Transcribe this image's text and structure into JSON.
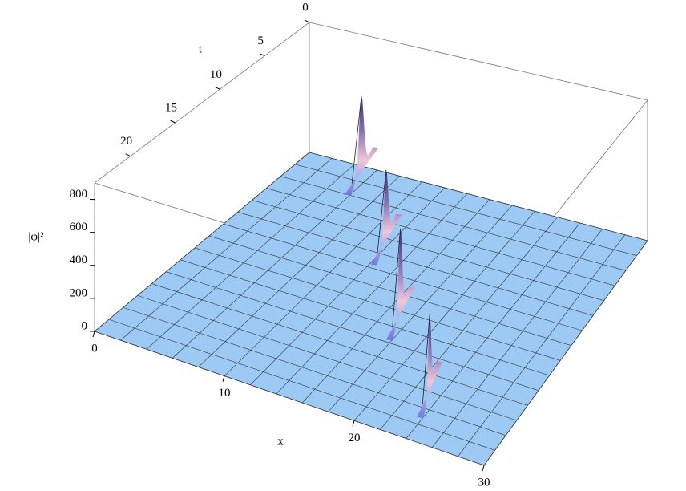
{
  "chart_data": {
    "type": "surface3d",
    "xlabel": "x",
    "ylabel": "t",
    "zlabel": "|φ|²",
    "xlim": [
      0,
      30
    ],
    "xticks": [
      0,
      10,
      20,
      30
    ],
    "ylim": [
      0,
      24
    ],
    "yticks": [
      0,
      5,
      10,
      15,
      20
    ],
    "zlim": [
      0,
      900
    ],
    "zticks": [
      0,
      200,
      400,
      600,
      800
    ],
    "color": "#9ccaf5",
    "peaks": {
      "x": [
        5,
        11.5,
        17,
        23
      ],
      "t": [
        0.5,
        6.5,
        13,
        19
      ],
      "values": [
        510,
        450,
        520,
        440
      ]
    }
  }
}
